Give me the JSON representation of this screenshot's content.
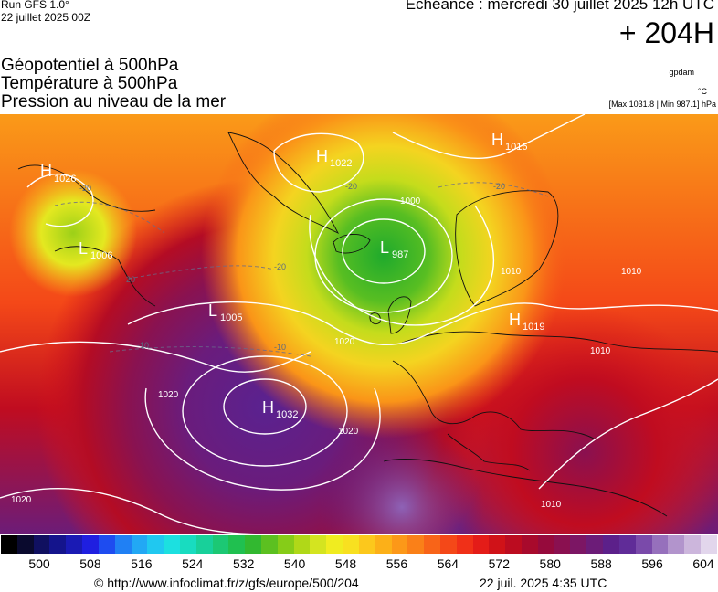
{
  "header": {
    "run_label": "Run GFS 1.0°",
    "run_date": "22 juillet 2025 00Z",
    "echeance": "Echéance : mercredi 30 juillet 2025 12h UTC",
    "lead_time": "+ 204H",
    "title_line1": "Géopotentiel à 500hPa",
    "title_line2": "Température à 500hPa",
    "title_line3": "Pression au niveau de la mer",
    "brand": "gpdam",
    "unit": "°C",
    "max_min": "[Max 1031.8 | Min 987.1] hPa"
  },
  "map": {
    "pressure_systems": [
      {
        "type": "H",
        "value": "1026"
      },
      {
        "type": "H",
        "value": "1022"
      },
      {
        "type": "H",
        "value": "1016"
      },
      {
        "type": "L",
        "value": "1006"
      },
      {
        "type": "L",
        "value": "987"
      },
      {
        "type": "L",
        "value": "1005"
      },
      {
        "type": "H",
        "value": "1019"
      },
      {
        "type": "H",
        "value": "1032"
      }
    ],
    "isobar_labels": [
      "1000",
      "1010",
      "1010",
      "1010",
      "1020",
      "1020",
      "1020",
      "1020",
      "1010"
    ],
    "temperature_labels": [
      "-20",
      "-20",
      "-20",
      "-20",
      "-20",
      "-10",
      "-10"
    ]
  },
  "legend": {
    "colors": [
      "#000000",
      "#0a0a2e",
      "#101060",
      "#14148c",
      "#1a1ab4",
      "#1f1fe0",
      "#1e4cf0",
      "#2080f4",
      "#22a8f4",
      "#20c8f0",
      "#1ce0e0",
      "#18dcc0",
      "#18d09a",
      "#1cc874",
      "#20c050",
      "#32b830",
      "#5cc020",
      "#86cc18",
      "#b0d818",
      "#d4e420",
      "#f0ec20",
      "#f8e020",
      "#fcc81c",
      "#fcb018",
      "#fc9818",
      "#fa8018",
      "#f86418",
      "#f44818",
      "#f03018",
      "#e41c18",
      "#d01218",
      "#bc0c20",
      "#a80a2c",
      "#960a3c",
      "#8a1050",
      "#7c1664",
      "#6c1c78",
      "#5c208a",
      "#602c98",
      "#7a4aaa",
      "#9670bc",
      "#b294cc",
      "#ccb6dc",
      "#e2d6ec"
    ],
    "tick_labels": [
      "500",
      "508",
      "516",
      "524",
      "532",
      "540",
      "548",
      "556",
      "564",
      "572",
      "580",
      "588",
      "596",
      "604"
    ]
  },
  "footer": {
    "url": "© http://www.infoclimat.fr/z/gfs/europe/500/204",
    "timestamp": "22 juil. 2025  4:35 UTC"
  }
}
